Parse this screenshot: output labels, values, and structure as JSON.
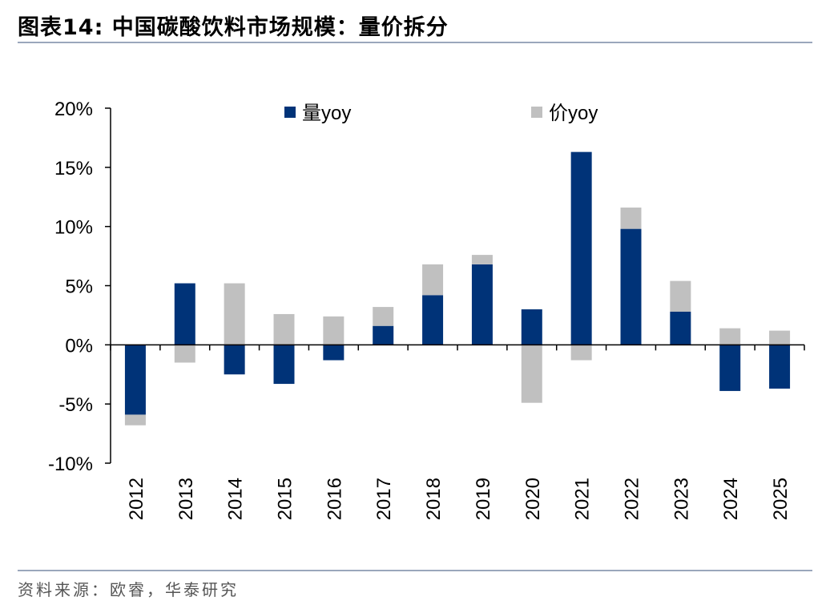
{
  "title": "图表14:  中国碳酸饮料市场规模：量价拆分",
  "source": "资料来源：欧睿，华泰研究",
  "chart_data": {
    "type": "bar",
    "stacked": true,
    "categories": [
      "2012",
      "2013",
      "2014",
      "2015",
      "2016",
      "2017",
      "2018",
      "2019",
      "2020",
      "2021",
      "2022",
      "2023",
      "2024",
      "2025"
    ],
    "series": [
      {
        "name": "量yoy",
        "color": "#003378",
        "values": [
          -5.9,
          5.2,
          -2.5,
          -3.3,
          -1.3,
          1.6,
          4.2,
          6.8,
          3.0,
          16.3,
          9.8,
          2.8,
          -3.9,
          -3.7
        ]
      },
      {
        "name": "价yoy",
        "color": "#c0c0c0",
        "values": [
          -0.9,
          -1.5,
          5.2,
          2.6,
          2.4,
          1.6,
          2.6,
          0.8,
          -4.9,
          -1.3,
          1.8,
          2.6,
          1.4,
          1.2
        ]
      }
    ],
    "ylim": [
      -10,
      20
    ],
    "yticks": [
      "-10%",
      "-5%",
      "0%",
      "5%",
      "10%",
      "15%",
      "20%"
    ],
    "ytick_values": [
      -10,
      -5,
      0,
      5,
      10,
      15,
      20
    ],
    "legend_position": "top",
    "grid": false
  }
}
